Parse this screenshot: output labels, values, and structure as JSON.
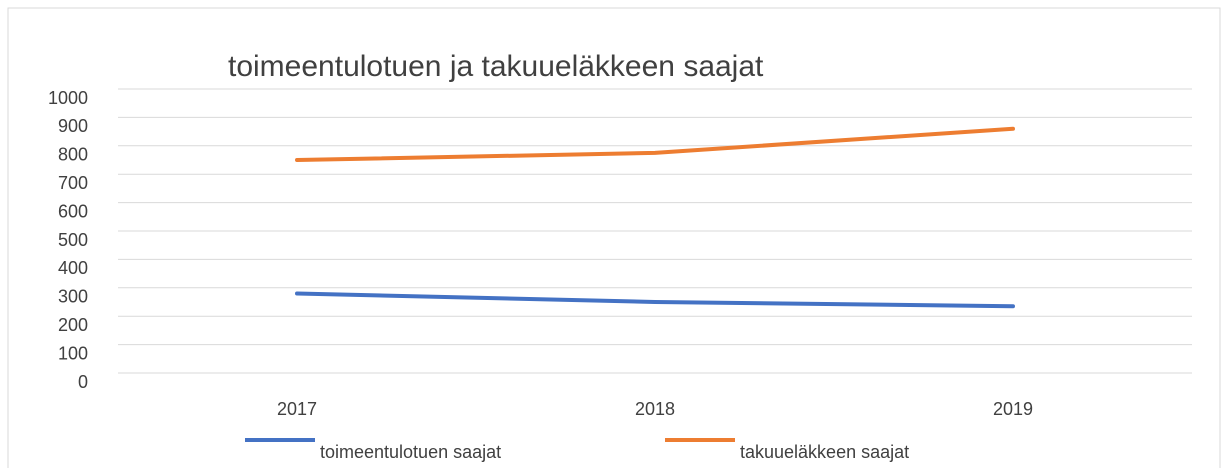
{
  "chart_data": {
    "type": "line",
    "title": "toimeentulotuen ja takuueläkkeen saajat",
    "categories": [
      "2017",
      "2018",
      "2019"
    ],
    "series": [
      {
        "name": "toimeentulotuen saajat",
        "color": "#4472c4",
        "values": [
          280,
          250,
          235
        ]
      },
      {
        "name": "takuueläkkeen saajat",
        "color": "#ed7d31",
        "values": [
          750,
          775,
          860
        ]
      }
    ],
    "ylim": [
      0,
      1000
    ],
    "yticks": [
      0,
      100,
      200,
      300,
      400,
      500,
      600,
      700,
      800,
      900,
      1000
    ],
    "grid": true,
    "legend": "bottom"
  }
}
